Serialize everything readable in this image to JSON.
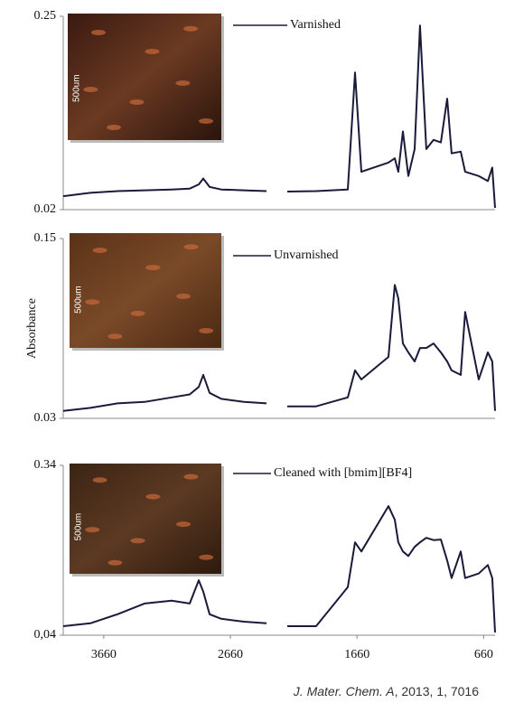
{
  "chart_data": [
    {
      "type": "line",
      "xlim": [
        3980,
        570
      ],
      "ylim": [
        0.02,
        0.25
      ],
      "yticks": [
        0.02,
        0.25
      ],
      "inset_label": "500um",
      "series": [
        {
          "name": "Varnished",
          "color": "#1a1a3a",
          "x": [
            3980,
            3766,
            3552,
            3338,
            3124,
            2981,
            2910,
            2874,
            2824,
            2732,
            2553,
            2375,
            2300,
            2211,
            1983,
            1733,
            1676,
            1626,
            1412,
            1362,
            1334,
            1298,
            1255,
            1205,
            1163,
            1113,
            1056,
            998,
            948,
            913,
            841,
            806,
            699,
            627,
            592,
            570
          ],
          "values": [
            0.036,
            0.04,
            0.042,
            0.043,
            0.044,
            0.045,
            0.05,
            0.057,
            0.047,
            0.044,
            0.043,
            0.042,
            null,
            0.0415,
            0.042,
            0.044,
            0.183,
            0.065,
            0.076,
            0.081,
            0.065,
            0.113,
            0.06,
            0.092,
            0.239,
            0.092,
            0.103,
            0.1,
            0.152,
            0.087,
            0.089,
            0.065,
            0.06,
            0.054,
            0.07,
            0.022
          ]
        }
      ]
    },
    {
      "type": "line",
      "xlim": [
        3980,
        570
      ],
      "ylim": [
        0.03,
        0.15
      ],
      "yticks": [
        0.03,
        0.15
      ],
      "ylabel": "Absorbance",
      "inset_label": "500um",
      "series": [
        {
          "name": "Unvarnished",
          "color": "#1a1a3a",
          "x": [
            3980,
            3766,
            3552,
            3338,
            3124,
            2981,
            2910,
            2874,
            2824,
            2732,
            2553,
            2375,
            2300,
            2211,
            1983,
            1733,
            1676,
            1626,
            1412,
            1362,
            1334,
            1298,
            1255,
            1205,
            1163,
            1113,
            1056,
            998,
            948,
            913,
            841,
            806,
            699,
            627,
            592,
            570
          ],
          "values": [
            0.035,
            0.037,
            0.04,
            0.041,
            0.044,
            0.046,
            0.051,
            0.059,
            0.047,
            0.043,
            0.041,
            0.04,
            null,
            0.038,
            0.038,
            0.044,
            0.062,
            0.056,
            0.071,
            0.119,
            0.11,
            0.08,
            0.074,
            0.068,
            0.077,
            0.077,
            0.08,
            0.074,
            0.068,
            0.062,
            0.059,
            0.101,
            0.056,
            0.074,
            0.068,
            0.035
          ]
        }
      ]
    },
    {
      "type": "line",
      "xlim": [
        3980,
        570
      ],
      "ylim": [
        0.04,
        0.34
      ],
      "yticks": [
        {
          "value": 0.04,
          "label": "0,04"
        },
        0.34
      ],
      "xticks": [
        3660,
        2660,
        1660,
        660
      ],
      "inset_label": "500um",
      "series": [
        {
          "name": "Cleaned with [bmim][BF4]",
          "color": "#1a1a3a",
          "x": [
            3980,
            3766,
            3552,
            3338,
            3124,
            2981,
            2910,
            2874,
            2824,
            2732,
            2553,
            2375,
            2300,
            2211,
            1983,
            1733,
            1676,
            1626,
            1412,
            1362,
            1334,
            1298,
            1255,
            1205,
            1163,
            1113,
            1056,
            998,
            948,
            913,
            841,
            806,
            699,
            627,
            592,
            570
          ],
          "values": [
            0.056,
            0.061,
            0.077,
            0.096,
            0.101,
            0.096,
            0.137,
            0.117,
            0.077,
            0.069,
            0.064,
            0.061,
            null,
            0.056,
            0.056,
            0.125,
            0.204,
            0.188,
            0.268,
            0.244,
            0.204,
            0.188,
            0.18,
            0.196,
            0.204,
            0.212,
            0.208,
            0.209,
            0.172,
            0.141,
            0.188,
            0.141,
            0.149,
            0.164,
            0.141,
            0.045
          ]
        }
      ]
    }
  ],
  "source": {
    "journal": "J. Mater. Chem. A",
    "details": ", 2013, 1, 7016"
  }
}
